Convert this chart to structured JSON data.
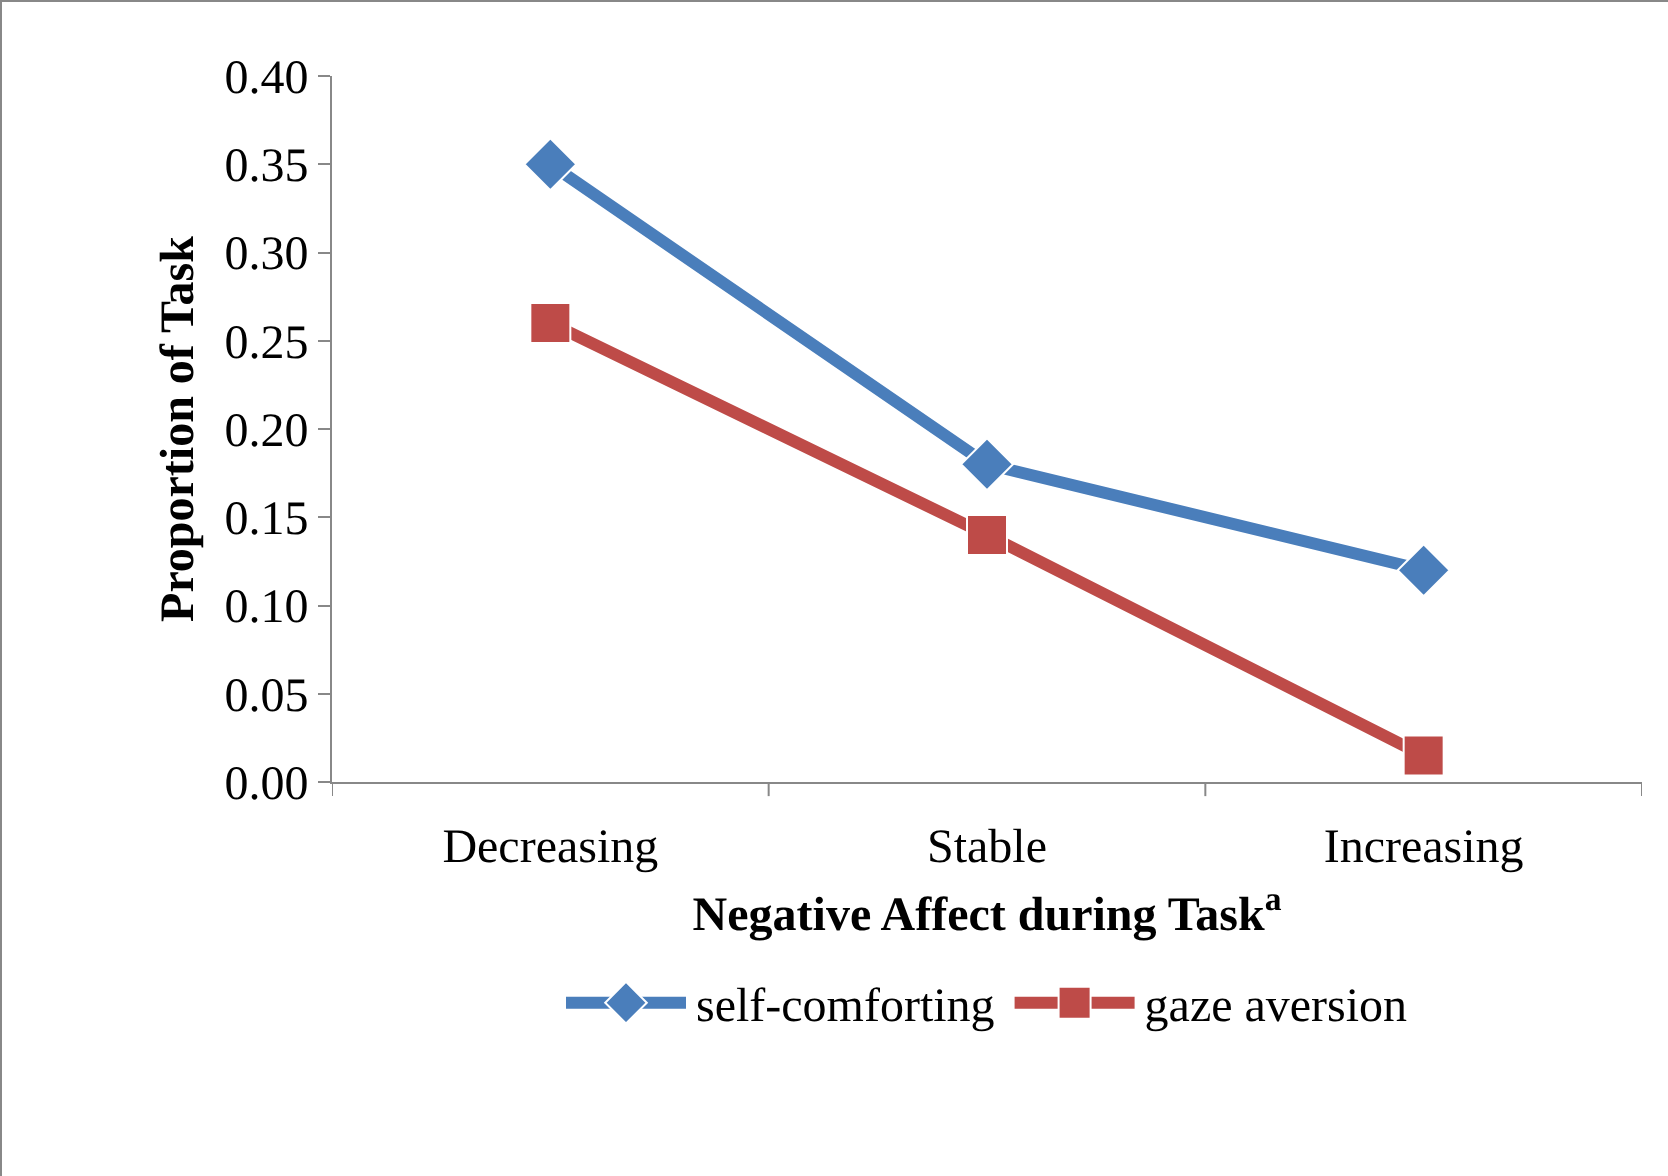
{
  "chart_data": {
    "type": "line",
    "xlabel": "Negative Affect during Task$^{a}$",
    "ylabel": "Proportion of Task",
    "categories": [
      "Decreasing",
      "Stable",
      "Increasing"
    ],
    "series": [
      {
        "name": "self-comforting",
        "color": "#4a7ebb",
        "marker": "diamond",
        "values": [
          0.35,
          0.18,
          0.12
        ]
      },
      {
        "name": "gaze aversion",
        "color": "#be4b48",
        "marker": "square",
        "values": [
          0.26,
          0.14,
          0.015
        ]
      }
    ],
    "ylim": [
      0,
      0.4
    ],
    "yticks": [
      {
        "value": 0,
        "label": "0.00"
      },
      {
        "value": 0.05,
        "label": "0.05"
      },
      {
        "value": 0.1,
        "label": "0.10"
      },
      {
        "value": 0.15,
        "label": "0.15"
      },
      {
        "value": 0.2,
        "label": "0.20"
      },
      {
        "value": 0.25,
        "label": "0.25"
      },
      {
        "value": 0.3,
        "label": "0.30"
      },
      {
        "value": 0.35,
        "label": "0.35"
      },
      {
        "value": 0.4,
        "label": "0.40"
      }
    ],
    "grid": false,
    "legend": "bottom",
    "line_style": "solid"
  }
}
